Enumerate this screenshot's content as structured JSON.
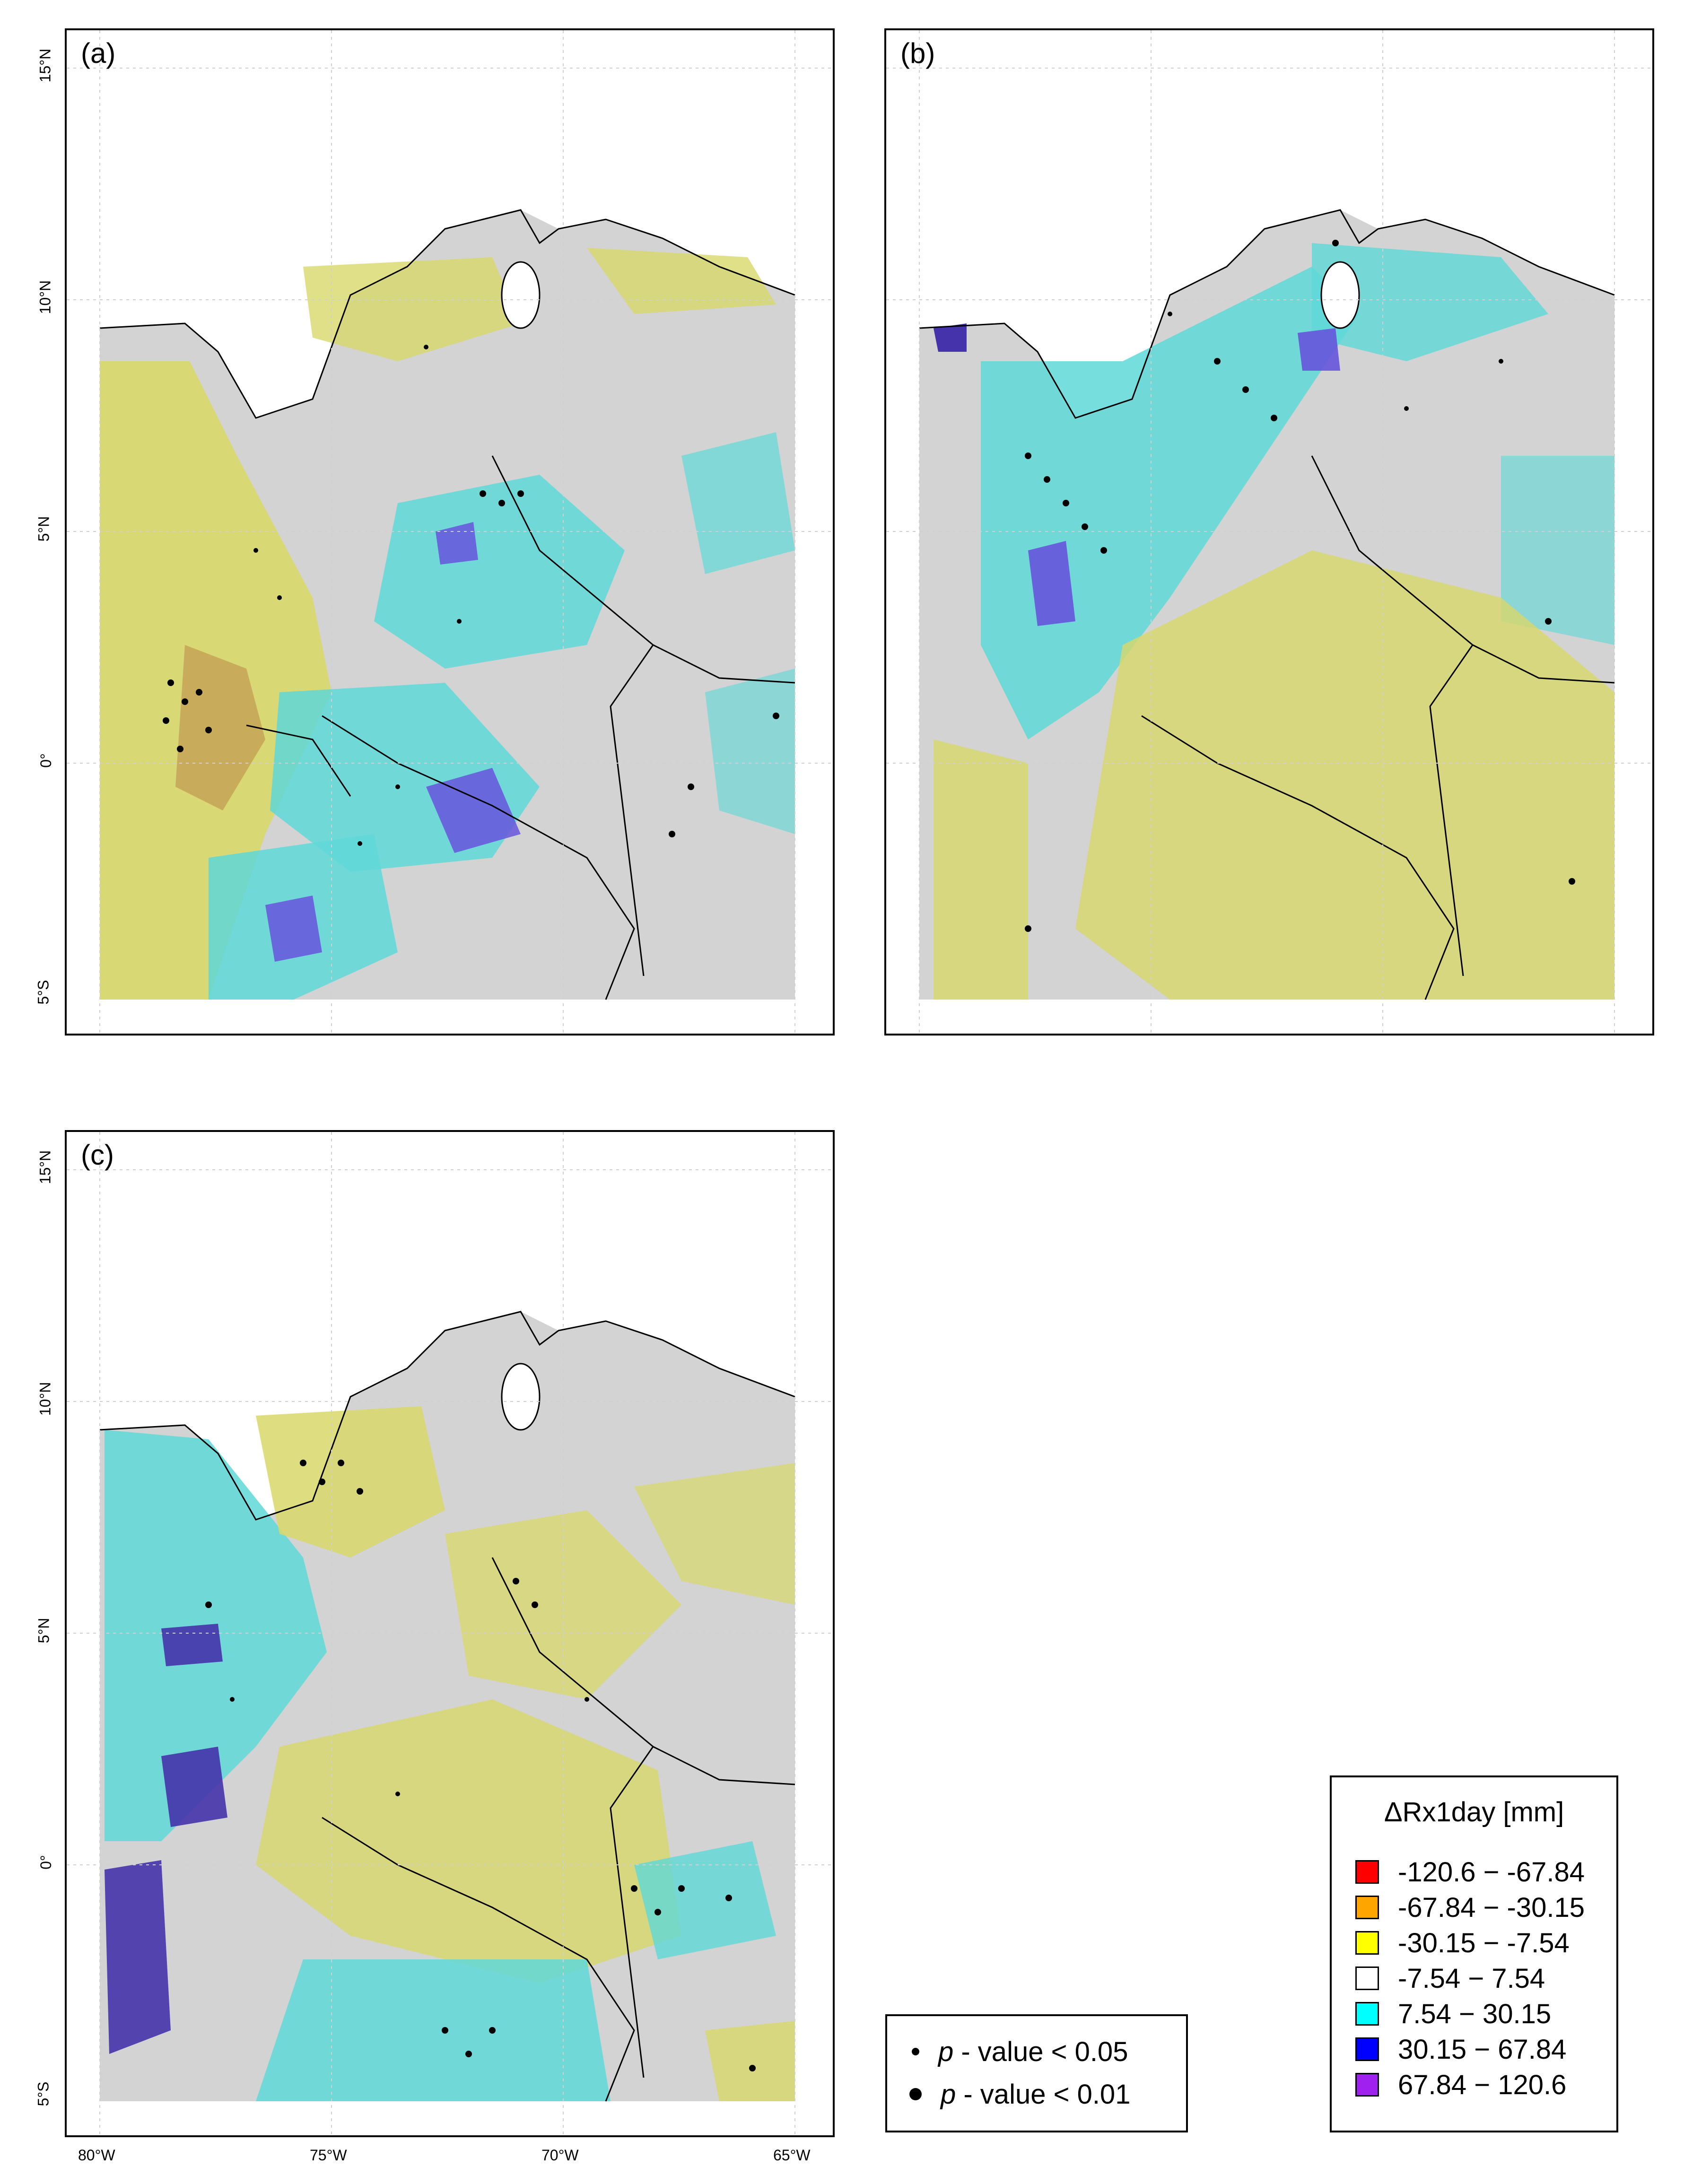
{
  "panels": [
    {
      "id": "a",
      "label": "(a)"
    },
    {
      "id": "b",
      "label": "(b)"
    },
    {
      "id": "c",
      "label": "(c)"
    }
  ],
  "axes": {
    "lat_labels": [
      "15°N",
      "10°N",
      "5°N",
      "0°",
      "5°S"
    ],
    "lon_labels": [
      "80°W",
      "75°W",
      "70°W",
      "65°W"
    ]
  },
  "legend": {
    "title": "ΔRx1day [mm]",
    "items": [
      {
        "label": "-120.6 − -67.84",
        "color": "#ff0000"
      },
      {
        "label": "-67.84 − -30.15",
        "color": "#ffa500"
      },
      {
        "label": "-30.15 − -7.54",
        "color": "#ffff00"
      },
      {
        "label": "-7.54 − 7.54",
        "color": "#ffffff"
      },
      {
        "label": "7.54 − 30.15",
        "color": "#00ffff"
      },
      {
        "label": "30.15 − 67.84",
        "color": "#0000ff"
      },
      {
        "label": "67.84 − 120.6",
        "color": "#a020f0"
      }
    ]
  },
  "pvalue_legend": {
    "items": [
      {
        "p": "p",
        "text": " - value < 0.05"
      },
      {
        "p": "p",
        "text": " - value < 0.01"
      }
    ]
  }
}
